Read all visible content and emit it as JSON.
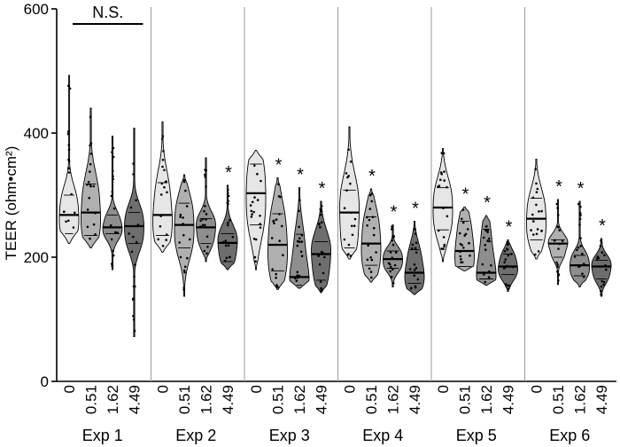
{
  "chart_data": {
    "type": "violin",
    "ylabel": "TEER (ohm•cm²)",
    "ylim": [
      0,
      600
    ],
    "yticks": [
      "0",
      "200",
      "400",
      "600"
    ],
    "categories": [
      "0",
      "0.51",
      "1.62",
      "4.49"
    ],
    "groups": [
      {
        "name": "Exp 1",
        "annotation": "N.S.",
        "stars": [
          "",
          "",
          "",
          ""
        ],
        "violins": [
          {
            "min": 222,
            "max": 493,
            "median": 268,
            "q1": 238,
            "q3": 300
          },
          {
            "min": 215,
            "max": 440,
            "median": 272,
            "q1": 235,
            "q3": 318
          },
          {
            "min": 180,
            "max": 395,
            "median": 248,
            "q1": 238,
            "q3": 268
          },
          {
            "min": 72,
            "max": 408,
            "median": 250,
            "q1": 222,
            "q3": 272
          }
        ]
      },
      {
        "name": "Exp 2",
        "annotation": "",
        "stars": [
          "",
          "",
          "",
          "*"
        ],
        "violins": [
          {
            "min": 208,
            "max": 418,
            "median": 268,
            "q1": 235,
            "q3": 320
          },
          {
            "min": 137,
            "max": 333,
            "median": 252,
            "q1": 215,
            "q3": 287
          },
          {
            "min": 193,
            "max": 360,
            "median": 248,
            "q1": 222,
            "q3": 262
          },
          {
            "min": 180,
            "max": 316,
            "median": 223,
            "q1": 193,
            "q3": 238
          }
        ]
      },
      {
        "name": "Exp 3",
        "annotation": "",
        "stars": [
          "",
          "*",
          "*",
          "*"
        ],
        "violins": [
          {
            "min": 180,
            "max": 372,
            "median": 303,
            "q1": 252,
            "q3": 350
          },
          {
            "min": 148,
            "max": 328,
            "median": 220,
            "q1": 178,
            "q3": 270
          },
          {
            "min": 150,
            "max": 312,
            "median": 168,
            "q1": 155,
            "q3": 237
          },
          {
            "min": 143,
            "max": 290,
            "median": 205,
            "q1": 163,
            "q3": 225
          }
        ]
      },
      {
        "name": "Exp 4",
        "annotation": "",
        "stars": [
          "",
          "*",
          "*",
          "*"
        ],
        "violins": [
          {
            "min": 197,
            "max": 410,
            "median": 272,
            "q1": 215,
            "q3": 308
          },
          {
            "min": 160,
            "max": 310,
            "median": 222,
            "q1": 187,
            "q3": 265
          },
          {
            "min": 152,
            "max": 252,
            "median": 197,
            "q1": 182,
            "q3": 210
          },
          {
            "min": 140,
            "max": 258,
            "median": 175,
            "q1": 158,
            "q3": 212
          }
        ]
      },
      {
        "name": "Exp 5",
        "annotation": "",
        "stars": [
          "",
          "*",
          "*",
          "*"
        ],
        "violins": [
          {
            "min": 193,
            "max": 375,
            "median": 280,
            "q1": 244,
            "q3": 312
          },
          {
            "min": 178,
            "max": 281,
            "median": 210,
            "q1": 185,
            "q3": 258
          },
          {
            "min": 155,
            "max": 267,
            "median": 175,
            "q1": 165,
            "q3": 245
          },
          {
            "min": 145,
            "max": 228,
            "median": 185,
            "q1": 172,
            "q3": 205
          }
        ]
      },
      {
        "name": "Exp 6",
        "annotation": "",
        "stars": [
          "",
          "*",
          "*",
          "*"
        ],
        "violins": [
          {
            "min": 197,
            "max": 358,
            "median": 262,
            "q1": 228,
            "q3": 295
          },
          {
            "min": 156,
            "max": 293,
            "median": 222,
            "q1": 200,
            "q3": 228
          },
          {
            "min": 152,
            "max": 290,
            "median": 187,
            "q1": 170,
            "q3": 203
          },
          {
            "min": 137,
            "max": 230,
            "median": 185,
            "q1": 165,
            "q3": 195
          }
        ]
      }
    ],
    "fill_colors": [
      "#e6e6e6",
      "#b0b0b0",
      "#8e8e8e",
      "#6e6e6e"
    ],
    "separator_color": "#9a9a9a"
  }
}
